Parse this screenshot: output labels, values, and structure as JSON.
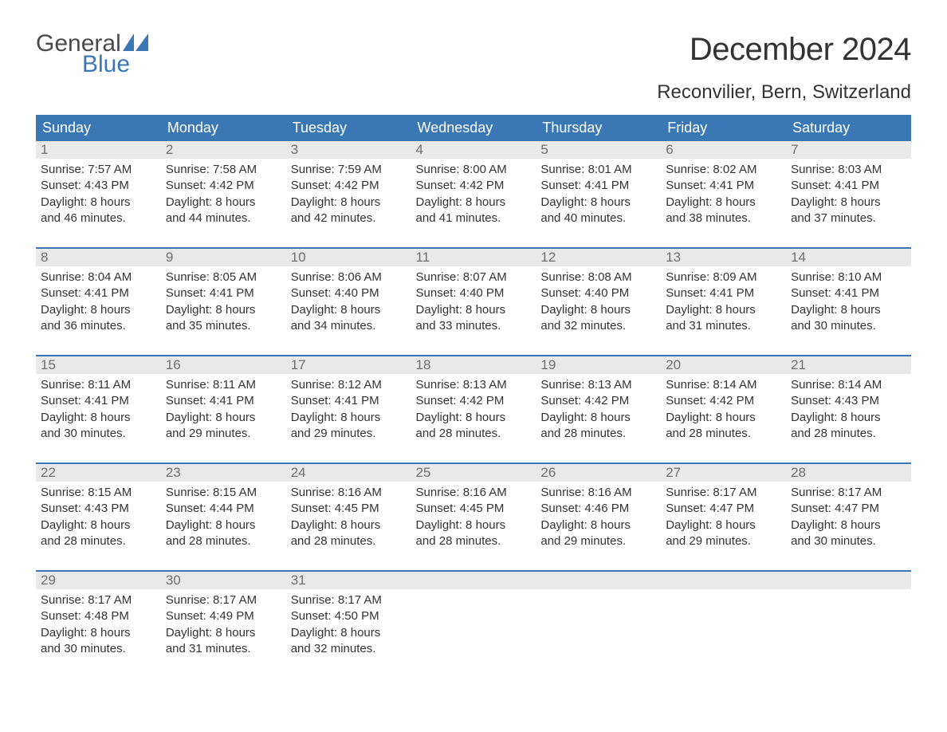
{
  "brand": {
    "word1": "General",
    "word2": "Blue",
    "accent_color": "#3a78b5",
    "text_color": "#4a4a4a"
  },
  "title": "December 2024",
  "location": "Reconvilier, Bern, Switzerland",
  "colors": {
    "header_bg": "#3a78b5",
    "header_text": "#ffffff",
    "daynum_bg": "#e9e9e9",
    "daynum_text": "#6f6f6f",
    "body_text": "#333333",
    "page_bg": "#ffffff",
    "separator": "#3a78b5"
  },
  "typography": {
    "title_fontsize": 40,
    "location_fontsize": 24,
    "weekday_fontsize": 18,
    "daynum_fontsize": 17,
    "cell_fontsize": 15
  },
  "weekdays": [
    "Sunday",
    "Monday",
    "Tuesday",
    "Wednesday",
    "Thursday",
    "Friday",
    "Saturday"
  ],
  "weeks": [
    [
      {
        "day": "1",
        "sunrise": "Sunrise: 7:57 AM",
        "sunset": "Sunset: 4:43 PM",
        "dl1": "Daylight: 8 hours",
        "dl2": "and 46 minutes."
      },
      {
        "day": "2",
        "sunrise": "Sunrise: 7:58 AM",
        "sunset": "Sunset: 4:42 PM",
        "dl1": "Daylight: 8 hours",
        "dl2": "and 44 minutes."
      },
      {
        "day": "3",
        "sunrise": "Sunrise: 7:59 AM",
        "sunset": "Sunset: 4:42 PM",
        "dl1": "Daylight: 8 hours",
        "dl2": "and 42 minutes."
      },
      {
        "day": "4",
        "sunrise": "Sunrise: 8:00 AM",
        "sunset": "Sunset: 4:42 PM",
        "dl1": "Daylight: 8 hours",
        "dl2": "and 41 minutes."
      },
      {
        "day": "5",
        "sunrise": "Sunrise: 8:01 AM",
        "sunset": "Sunset: 4:41 PM",
        "dl1": "Daylight: 8 hours",
        "dl2": "and 40 minutes."
      },
      {
        "day": "6",
        "sunrise": "Sunrise: 8:02 AM",
        "sunset": "Sunset: 4:41 PM",
        "dl1": "Daylight: 8 hours",
        "dl2": "and 38 minutes."
      },
      {
        "day": "7",
        "sunrise": "Sunrise: 8:03 AM",
        "sunset": "Sunset: 4:41 PM",
        "dl1": "Daylight: 8 hours",
        "dl2": "and 37 minutes."
      }
    ],
    [
      {
        "day": "8",
        "sunrise": "Sunrise: 8:04 AM",
        "sunset": "Sunset: 4:41 PM",
        "dl1": "Daylight: 8 hours",
        "dl2": "and 36 minutes."
      },
      {
        "day": "9",
        "sunrise": "Sunrise: 8:05 AM",
        "sunset": "Sunset: 4:41 PM",
        "dl1": "Daylight: 8 hours",
        "dl2": "and 35 minutes."
      },
      {
        "day": "10",
        "sunrise": "Sunrise: 8:06 AM",
        "sunset": "Sunset: 4:40 PM",
        "dl1": "Daylight: 8 hours",
        "dl2": "and 34 minutes."
      },
      {
        "day": "11",
        "sunrise": "Sunrise: 8:07 AM",
        "sunset": "Sunset: 4:40 PM",
        "dl1": "Daylight: 8 hours",
        "dl2": "and 33 minutes."
      },
      {
        "day": "12",
        "sunrise": "Sunrise: 8:08 AM",
        "sunset": "Sunset: 4:40 PM",
        "dl1": "Daylight: 8 hours",
        "dl2": "and 32 minutes."
      },
      {
        "day": "13",
        "sunrise": "Sunrise: 8:09 AM",
        "sunset": "Sunset: 4:41 PM",
        "dl1": "Daylight: 8 hours",
        "dl2": "and 31 minutes."
      },
      {
        "day": "14",
        "sunrise": "Sunrise: 8:10 AM",
        "sunset": "Sunset: 4:41 PM",
        "dl1": "Daylight: 8 hours",
        "dl2": "and 30 minutes."
      }
    ],
    [
      {
        "day": "15",
        "sunrise": "Sunrise: 8:11 AM",
        "sunset": "Sunset: 4:41 PM",
        "dl1": "Daylight: 8 hours",
        "dl2": "and 30 minutes."
      },
      {
        "day": "16",
        "sunrise": "Sunrise: 8:11 AM",
        "sunset": "Sunset: 4:41 PM",
        "dl1": "Daylight: 8 hours",
        "dl2": "and 29 minutes."
      },
      {
        "day": "17",
        "sunrise": "Sunrise: 8:12 AM",
        "sunset": "Sunset: 4:41 PM",
        "dl1": "Daylight: 8 hours",
        "dl2": "and 29 minutes."
      },
      {
        "day": "18",
        "sunrise": "Sunrise: 8:13 AM",
        "sunset": "Sunset: 4:42 PM",
        "dl1": "Daylight: 8 hours",
        "dl2": "and 28 minutes."
      },
      {
        "day": "19",
        "sunrise": "Sunrise: 8:13 AM",
        "sunset": "Sunset: 4:42 PM",
        "dl1": "Daylight: 8 hours",
        "dl2": "and 28 minutes."
      },
      {
        "day": "20",
        "sunrise": "Sunrise: 8:14 AM",
        "sunset": "Sunset: 4:42 PM",
        "dl1": "Daylight: 8 hours",
        "dl2": "and 28 minutes."
      },
      {
        "day": "21",
        "sunrise": "Sunrise: 8:14 AM",
        "sunset": "Sunset: 4:43 PM",
        "dl1": "Daylight: 8 hours",
        "dl2": "and 28 minutes."
      }
    ],
    [
      {
        "day": "22",
        "sunrise": "Sunrise: 8:15 AM",
        "sunset": "Sunset: 4:43 PM",
        "dl1": "Daylight: 8 hours",
        "dl2": "and 28 minutes."
      },
      {
        "day": "23",
        "sunrise": "Sunrise: 8:15 AM",
        "sunset": "Sunset: 4:44 PM",
        "dl1": "Daylight: 8 hours",
        "dl2": "and 28 minutes."
      },
      {
        "day": "24",
        "sunrise": "Sunrise: 8:16 AM",
        "sunset": "Sunset: 4:45 PM",
        "dl1": "Daylight: 8 hours",
        "dl2": "and 28 minutes."
      },
      {
        "day": "25",
        "sunrise": "Sunrise: 8:16 AM",
        "sunset": "Sunset: 4:45 PM",
        "dl1": "Daylight: 8 hours",
        "dl2": "and 28 minutes."
      },
      {
        "day": "26",
        "sunrise": "Sunrise: 8:16 AM",
        "sunset": "Sunset: 4:46 PM",
        "dl1": "Daylight: 8 hours",
        "dl2": "and 29 minutes."
      },
      {
        "day": "27",
        "sunrise": "Sunrise: 8:17 AM",
        "sunset": "Sunset: 4:47 PM",
        "dl1": "Daylight: 8 hours",
        "dl2": "and 29 minutes."
      },
      {
        "day": "28",
        "sunrise": "Sunrise: 8:17 AM",
        "sunset": "Sunset: 4:47 PM",
        "dl1": "Daylight: 8 hours",
        "dl2": "and 30 minutes."
      }
    ],
    [
      {
        "day": "29",
        "sunrise": "Sunrise: 8:17 AM",
        "sunset": "Sunset: 4:48 PM",
        "dl1": "Daylight: 8 hours",
        "dl2": "and 30 minutes."
      },
      {
        "day": "30",
        "sunrise": "Sunrise: 8:17 AM",
        "sunset": "Sunset: 4:49 PM",
        "dl1": "Daylight: 8 hours",
        "dl2": "and 31 minutes."
      },
      {
        "day": "31",
        "sunrise": "Sunrise: 8:17 AM",
        "sunset": "Sunset: 4:50 PM",
        "dl1": "Daylight: 8 hours",
        "dl2": "and 32 minutes."
      },
      null,
      null,
      null,
      null
    ]
  ]
}
